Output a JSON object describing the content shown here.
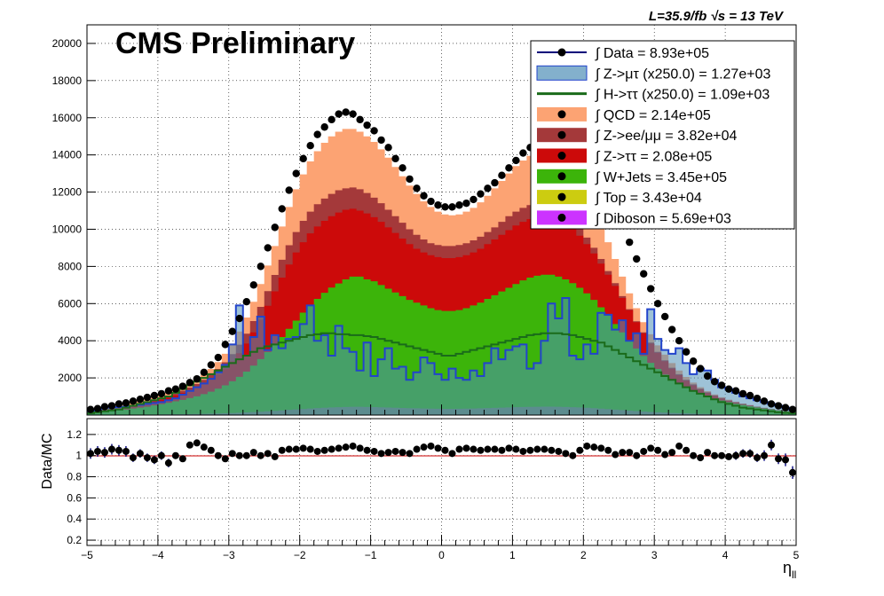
{
  "header": {
    "title": "CMS Preliminary",
    "lumi_label": "L=35.9/fb  √s = 13 TeV"
  },
  "colors": {
    "data": "#000000",
    "qcd": "#fca373",
    "zll": "#a4393a",
    "ztt": "#cc0a0a",
    "wjets": "#3cb40a",
    "top": "#cccc10",
    "diboson": "#cc33ff",
    "signal_zmt": "#4f8fb6",
    "signal_htt": "#1a6b1a",
    "ratio_line": "#cc0000",
    "error_bar": "#00007a"
  },
  "chart_data": [
    {
      "type": "area",
      "title": "",
      "xlabel": "η_ll",
      "ylabel": "",
      "xlim": [
        -5,
        5
      ],
      "ylim": [
        0,
        21000
      ],
      "grid": true,
      "legend_position": "top-right",
      "y_ticks": [
        2000,
        4000,
        6000,
        8000,
        10000,
        12000,
        14000,
        16000,
        18000,
        20000
      ],
      "x_ticks": [
        -5,
        -4,
        -3,
        -2,
        -1,
        0,
        1,
        2,
        3,
        4,
        5
      ],
      "legend": [
        {
          "key": "data",
          "label": "∫ Data = 8.93e+05"
        },
        {
          "key": "signal_zmt",
          "label": "∫ Z->μτ (x250.0) = 1.27e+03"
        },
        {
          "key": "signal_htt",
          "label": "∫ H->ττ (x250.0) = 1.09e+03"
        },
        {
          "key": "qcd",
          "label": "∫ QCD = 2.14e+05"
        },
        {
          "key": "zll",
          "label": "∫ Z->ee/μμ = 3.82e+04"
        },
        {
          "key": "ztt",
          "label": "∫ Z->ττ = 2.08e+05"
        },
        {
          "key": "wjets",
          "label": "∫ W+Jets = 3.45e+05"
        },
        {
          "key": "top",
          "label": "∫ Top = 3.43e+04"
        },
        {
          "key": "diboson",
          "label": "∫ Diboson = 5.69e+03"
        }
      ],
      "bins": 100,
      "data": [
        300,
        350,
        450,
        500,
        600,
        650,
        750,
        850,
        950,
        1050,
        1150,
        1300,
        1400,
        1550,
        1750,
        1950,
        2300,
        2700,
        3100,
        3800,
        4500,
        5200,
        6100,
        7000,
        8000,
        9000,
        10100,
        11100,
        12100,
        13000,
        13800,
        14500,
        15100,
        15500,
        15900,
        16200,
        16300,
        16200,
        15900,
        15600,
        15300,
        14800,
        14400,
        13800,
        13300,
        12700,
        12200,
        11800,
        11500,
        11300,
        11200,
        11200,
        11300,
        11400,
        11600,
        11900,
        12200,
        12500,
        12900,
        13300,
        13700,
        14100,
        14400,
        14700,
        14900,
        15100,
        15100,
        15000,
        14700,
        14500,
        14000,
        13500,
        12800,
        12000,
        11200,
        10300,
        9300,
        8400,
        7600,
        6800,
        6000,
        5300,
        4600,
        4000,
        3400,
        2900,
        2500,
        2100,
        1800,
        1600,
        1400,
        1300,
        1150,
        1050,
        900,
        750,
        600,
        500,
        400,
        300
      ],
      "stack_order": [
        "diboson",
        "top",
        "wjets",
        "ztt",
        "zll",
        "qcd"
      ],
      "stack_totals": {
        "wjets": [
          120,
          150,
          180,
          220,
          260,
          300,
          350,
          400,
          450,
          520,
          590,
          660,
          740,
          820,
          910,
          1010,
          1130,
          1260,
          1420,
          1600,
          1820,
          2060,
          2340,
          2660,
          3010,
          3390,
          3780,
          4200,
          4640,
          5080,
          5510,
          5900,
          6250,
          6580,
          6860,
          7080,
          7300,
          7450,
          7450,
          7300,
          7200,
          7000,
          6800,
          6600,
          6400,
          6200,
          6050,
          5900,
          5750,
          5650,
          5600,
          5600,
          5650,
          5750,
          5900,
          6050,
          6250,
          6450,
          6650,
          6850,
          7050,
          7250,
          7400,
          7500,
          7550,
          7550,
          7450,
          7300,
          7100,
          6850,
          6550,
          6200,
          5800,
          5350,
          4900,
          4450,
          4000,
          3580,
          3180,
          2810,
          2480,
          2180,
          1920,
          1680,
          1470,
          1290,
          1130,
          1000,
          880,
          780,
          690,
          610,
          540,
          470,
          410,
          350,
          300,
          250,
          200,
          160
        ],
        "ztt": [
          180,
          220,
          260,
          310,
          360,
          420,
          490,
          560,
          640,
          730,
          830,
          940,
          1060,
          1190,
          1340,
          1500,
          1700,
          1930,
          2200,
          2500,
          2880,
          3330,
          3850,
          4450,
          5130,
          5880,
          6660,
          7400,
          8100,
          8750,
          9300,
          9780,
          10150,
          10450,
          10700,
          10900,
          11050,
          11100,
          11000,
          10850,
          10650,
          10400,
          10100,
          9800,
          9500,
          9200,
          8950,
          8750,
          8600,
          8500,
          8450,
          8450,
          8500,
          8600,
          8750,
          8950,
          9200,
          9450,
          9700,
          9950,
          10200,
          10400,
          10550,
          10650,
          10700,
          10650,
          10500,
          10300,
          10000,
          9650,
          9200,
          8700,
          8150,
          7550,
          6950,
          6300,
          5650,
          5000,
          4400,
          3850,
          3350,
          2900,
          2500,
          2150,
          1850,
          1600,
          1380,
          1190,
          1030,
          890,
          770,
          670,
          580,
          500,
          430,
          370,
          310,
          260,
          210,
          170
        ],
        "zll": [
          200,
          240,
          290,
          340,
          400,
          460,
          530,
          610,
          700,
          800,
          910,
          1030,
          1160,
          1310,
          1480,
          1670,
          1900,
          2170,
          2480,
          2840,
          3280,
          3790,
          4380,
          5060,
          5820,
          6670,
          7540,
          8360,
          9140,
          9850,
          10450,
          10950,
          11350,
          11650,
          11900,
          12100,
          12200,
          12250,
          12150,
          11950,
          11700,
          11400,
          11050,
          10700,
          10350,
          10000,
          9700,
          9450,
          9250,
          9150,
          9100,
          9100,
          9150,
          9250,
          9400,
          9600,
          9850,
          10100,
          10400,
          10700,
          10950,
          11150,
          11300,
          11350,
          11350,
          11250,
          11050,
          10800,
          10450,
          10050,
          9550,
          9000,
          8400,
          7750,
          7100,
          6400,
          5700,
          5050,
          4450,
          3900,
          3400,
          2950,
          2550,
          2200,
          1900,
          1650,
          1420,
          1230,
          1060,
          920,
          790,
          690,
          600,
          520,
          450,
          390,
          330,
          270,
          220,
          180
        ],
        "qcd": [
          260,
          310,
          370,
          430,
          500,
          570,
          650,
          740,
          840,
          950,
          1070,
          1200,
          1350,
          1510,
          1700,
          1910,
          2170,
          2480,
          2850,
          3300,
          3850,
          4500,
          5250,
          6100,
          7050,
          8050,
          9100,
          10150,
          11200,
          12150,
          12950,
          13650,
          14200,
          14650,
          15000,
          15250,
          15400,
          15400,
          15250,
          15000,
          14700,
          14300,
          13850,
          13350,
          12850,
          12350,
          11900,
          11500,
          11200,
          10950,
          10800,
          10750,
          10800,
          10950,
          11150,
          11450,
          11800,
          12200,
          12600,
          13000,
          13400,
          13700,
          13950,
          14100,
          14150,
          14050,
          13800,
          13450,
          13000,
          12450,
          11800,
          11050,
          10200,
          9300,
          8400,
          7450,
          6550,
          5750,
          5000,
          4350,
          3750,
          3250,
          2800,
          2400,
          2050,
          1750,
          1500,
          1290,
          1110,
          960,
          830,
          720,
          620,
          540,
          460,
          390,
          320,
          260,
          210,
          170
        ]
      },
      "signal_zmt": [
        150,
        300,
        400,
        420,
        430,
        450,
        500,
        550,
        600,
        650,
        700,
        800,
        900,
        1100,
        1300,
        1500,
        1700,
        1950,
        2300,
        2700,
        3800,
        5900,
        3200,
        4200,
        5300,
        3500,
        4300,
        3600,
        4100,
        4200,
        4900,
        5900,
        4000,
        4300,
        3200,
        4800,
        3600,
        3400,
        2400,
        3900,
        2100,
        3000,
        3600,
        2500,
        2600,
        1900,
        2300,
        3100,
        2800,
        2200,
        1900,
        2500,
        2000,
        1900,
        2400,
        2100,
        2800,
        3600,
        3000,
        3500,
        3700,
        3800,
        2500,
        2800,
        4000,
        6000,
        5200,
        6300,
        3200,
        3000,
        3800,
        3300,
        5500,
        5400,
        4600,
        5100,
        4000,
        4400,
        3300,
        5700,
        4100,
        3500,
        3300,
        3600,
        2800,
        2200,
        2500,
        2400,
        1900,
        1500,
        1400,
        1200,
        1000,
        900,
        800,
        700,
        600,
        500,
        400,
        300
      ],
      "signal_htt": [
        100,
        150,
        200,
        250,
        300,
        400,
        500,
        600,
        700,
        800,
        900,
        1000,
        1200,
        1400,
        1600,
        1800,
        2000,
        2200,
        2400,
        2600,
        2800,
        3000,
        3200,
        3400,
        3600,
        3700,
        3800,
        3900,
        4000,
        4100,
        4200,
        4300,
        4350,
        4400,
        4400,
        4350,
        4350,
        4300,
        4300,
        4250,
        4200,
        4100,
        4000,
        3900,
        3800,
        3700,
        3600,
        3500,
        3400,
        3300,
        3200,
        3200,
        3300,
        3400,
        3500,
        3600,
        3700,
        3800,
        3900,
        4000,
        4100,
        4200,
        4300,
        4350,
        4400,
        4400,
        4400,
        4350,
        4300,
        4200,
        4100,
        4000,
        3900,
        3700,
        3500,
        3300,
        3100,
        2900,
        2700,
        2500,
        2300,
        2100,
        1900,
        1700,
        1500,
        1300,
        1150,
        1000,
        850,
        700,
        600,
        500,
        400,
        350,
        300,
        250,
        200,
        150,
        120,
        100
      ]
    },
    {
      "type": "scatter",
      "ylabel": "Data/MC",
      "xlabel": "η_ll",
      "xlim": [
        -5,
        5
      ],
      "ylim": [
        0.15,
        1.35
      ],
      "reference_line": 1.0,
      "y_ticks": [
        0.2,
        0.4,
        0.6,
        0.8,
        1.0,
        1.2
      ],
      "y_tick_labels": [
        "0.2",
        "0.4",
        "0.6",
        "0.8",
        "1",
        "1.2"
      ],
      "x_ticks": [
        -5,
        -4,
        -3,
        -2,
        -1,
        0,
        1,
        2,
        3,
        4,
        5
      ],
      "ratio": [
        1.02,
        1.04,
        1.03,
        1.06,
        1.05,
        1.04,
        0.98,
        1.02,
        0.98,
        0.96,
        1.0,
        0.93,
        1.0,
        0.97,
        1.1,
        1.12,
        1.08,
        1.05,
        1.0,
        0.97,
        1.02,
        1.0,
        1.0,
        1.03,
        1.0,
        1.02,
        0.99,
        1.05,
        1.06,
        1.06,
        1.07,
        1.06,
        1.04,
        1.05,
        1.06,
        1.07,
        1.08,
        1.09,
        1.07,
        1.05,
        1.04,
        1.02,
        1.03,
        1.04,
        1.03,
        1.02,
        1.06,
        1.08,
        1.09,
        1.07,
        1.05,
        1.02,
        1.06,
        1.07,
        1.06,
        1.05,
        1.06,
        1.06,
        1.05,
        1.07,
        1.06,
        1.04,
        1.05,
        1.06,
        1.06,
        1.05,
        1.04,
        1.02,
        1.0,
        1.05,
        1.09,
        1.08,
        1.07,
        1.05,
        1.01,
        1.03,
        1.03,
        1.0,
        1.04,
        1.07,
        1.05,
        1.01,
        1.03,
        1.09,
        1.05,
        1.0,
        0.98,
        1.03,
        1.0,
        1.0,
        0.99,
        1.0,
        1.02,
        1.02,
        0.98,
        1.0,
        1.1,
        0.97,
        0.96,
        0.84
      ],
      "ratio_err": [
        0.05,
        0.05,
        0.05,
        0.05,
        0.05,
        0.05,
        0.04,
        0.04,
        0.04,
        0.04,
        0.04,
        0.04,
        0.03,
        0.03,
        0.03,
        0.03,
        0.02,
        0.02,
        0.02,
        0.02,
        0.01,
        0.01,
        0.01,
        0.01,
        0.01,
        0.01,
        0.01,
        0.01,
        0.01,
        0.01,
        0.01,
        0.01,
        0.01,
        0.01,
        0.01,
        0.01,
        0.01,
        0.01,
        0.01,
        0.01,
        0.01,
        0.01,
        0.01,
        0.01,
        0.01,
        0.01,
        0.01,
        0.01,
        0.01,
        0.01,
        0.01,
        0.01,
        0.01,
        0.01,
        0.01,
        0.01,
        0.01,
        0.01,
        0.01,
        0.01,
        0.01,
        0.01,
        0.01,
        0.01,
        0.01,
        0.01,
        0.01,
        0.01,
        0.01,
        0.01,
        0.01,
        0.01,
        0.01,
        0.01,
        0.01,
        0.01,
        0.01,
        0.01,
        0.01,
        0.01,
        0.01,
        0.01,
        0.01,
        0.02,
        0.02,
        0.02,
        0.02,
        0.03,
        0.03,
        0.03,
        0.03,
        0.04,
        0.04,
        0.04,
        0.04,
        0.05,
        0.05,
        0.05,
        0.06,
        0.06
      ]
    }
  ]
}
